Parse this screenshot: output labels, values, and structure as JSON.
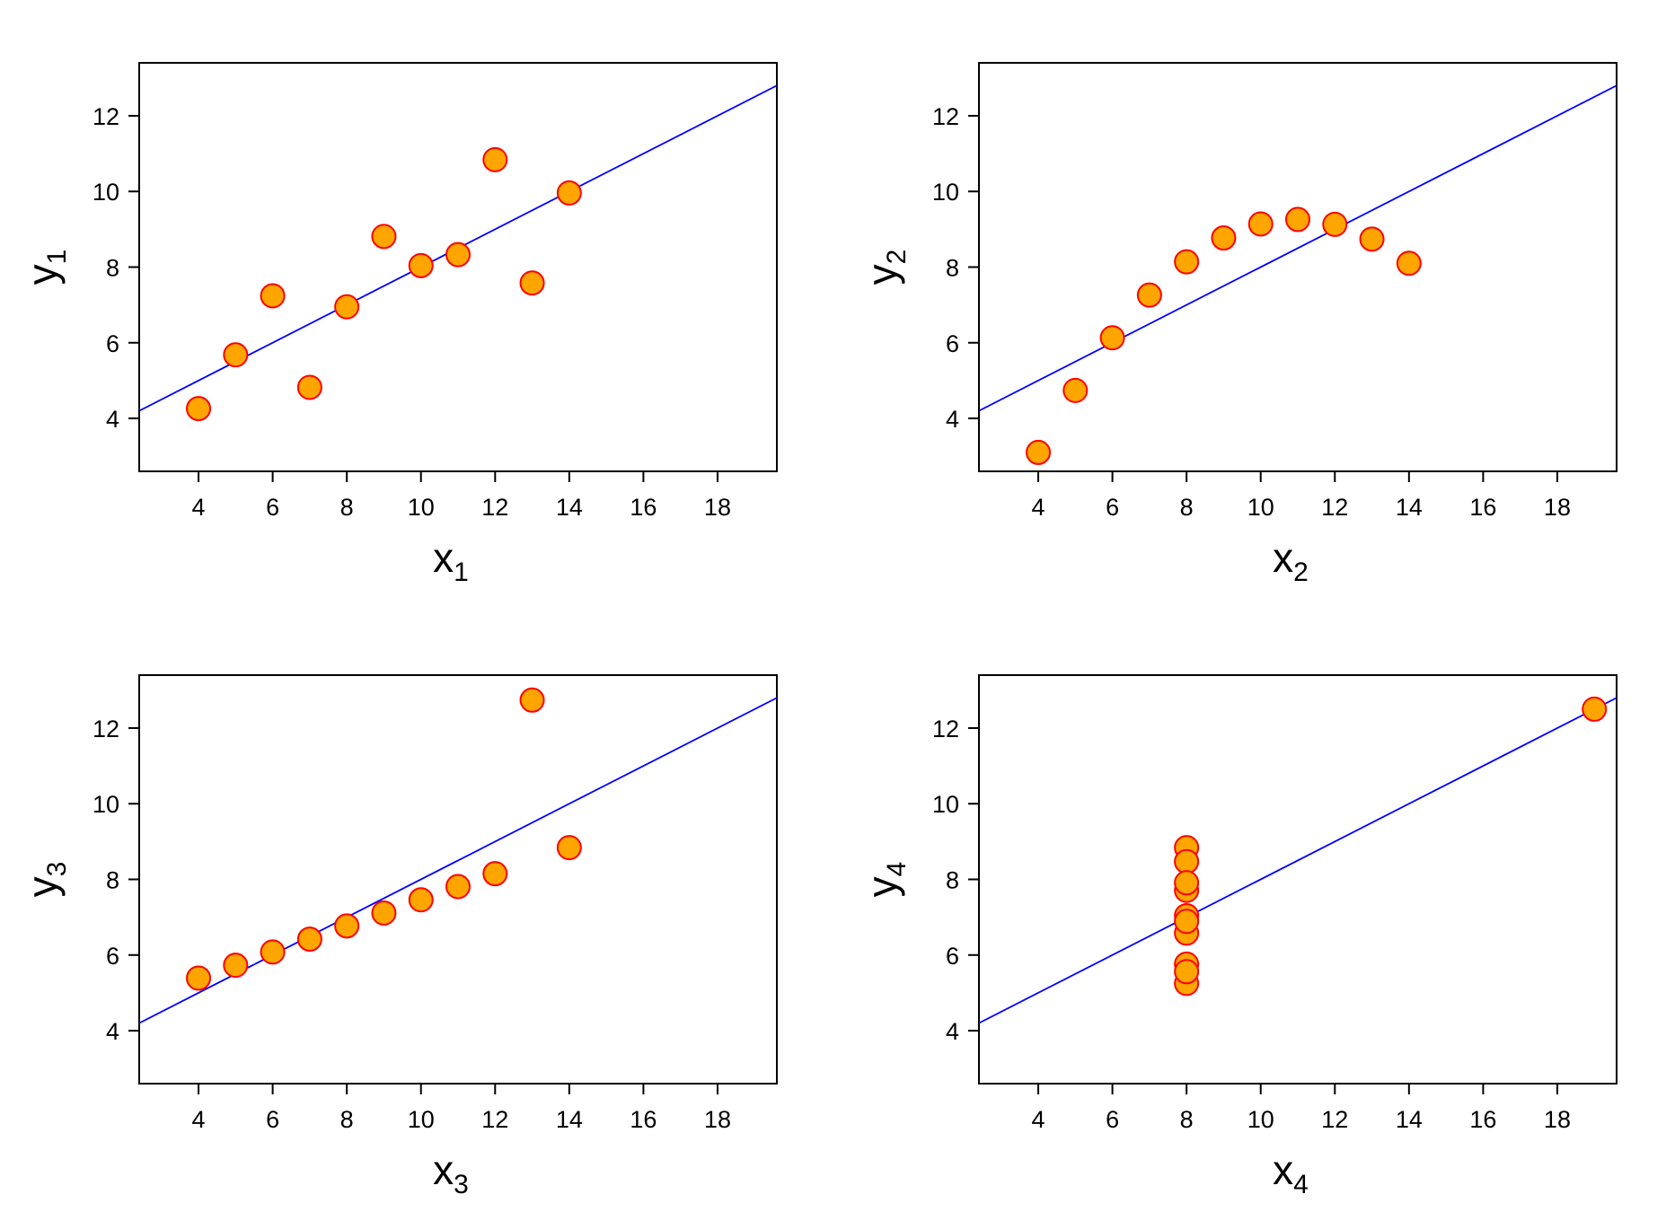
{
  "chart_data": [
    {
      "type": "scatter",
      "xlabel": "x",
      "xlabel_sub": "1",
      "ylabel": "y",
      "ylabel_sub": "1",
      "xlim": [
        2.4,
        19.6
      ],
      "ylim": [
        2.6,
        13.4
      ],
      "xticks": [
        4,
        6,
        8,
        10,
        12,
        14,
        16,
        18
      ],
      "yticks": [
        4,
        6,
        8,
        10,
        12
      ],
      "grid": false,
      "fit_line": {
        "intercept": 3.0,
        "slope": 0.5
      },
      "points": {
        "x": [
          10,
          8,
          13,
          9,
          11,
          14,
          6,
          4,
          12,
          7,
          5
        ],
        "y": [
          8.04,
          6.95,
          7.58,
          8.81,
          8.33,
          9.96,
          7.24,
          4.26,
          10.84,
          4.82,
          5.68
        ]
      }
    },
    {
      "type": "scatter",
      "xlabel": "x",
      "xlabel_sub": "2",
      "ylabel": "y",
      "ylabel_sub": "2",
      "xlim": [
        2.4,
        19.6
      ],
      "ylim": [
        2.6,
        13.4
      ],
      "xticks": [
        4,
        6,
        8,
        10,
        12,
        14,
        16,
        18
      ],
      "yticks": [
        4,
        6,
        8,
        10,
        12
      ],
      "grid": false,
      "fit_line": {
        "intercept": 3.0,
        "slope": 0.5
      },
      "points": {
        "x": [
          10,
          8,
          13,
          9,
          11,
          14,
          6,
          4,
          12,
          7,
          5
        ],
        "y": [
          9.14,
          8.14,
          8.74,
          8.77,
          9.26,
          8.1,
          6.13,
          3.1,
          9.13,
          7.26,
          4.74
        ]
      }
    },
    {
      "type": "scatter",
      "xlabel": "x",
      "xlabel_sub": "3",
      "ylabel": "y",
      "ylabel_sub": "3",
      "xlim": [
        2.4,
        19.6
      ],
      "ylim": [
        2.6,
        13.4
      ],
      "xticks": [
        4,
        6,
        8,
        10,
        12,
        14,
        16,
        18
      ],
      "yticks": [
        4,
        6,
        8,
        10,
        12
      ],
      "grid": false,
      "fit_line": {
        "intercept": 3.0,
        "slope": 0.5
      },
      "points": {
        "x": [
          10,
          8,
          13,
          9,
          11,
          14,
          6,
          4,
          12,
          7,
          5
        ],
        "y": [
          7.46,
          6.77,
          12.74,
          7.11,
          7.81,
          8.84,
          6.08,
          5.39,
          8.15,
          6.42,
          5.73
        ]
      }
    },
    {
      "type": "scatter",
      "xlabel": "x",
      "xlabel_sub": "4",
      "ylabel": "y",
      "ylabel_sub": "4",
      "xlim": [
        2.4,
        19.6
      ],
      "ylim": [
        2.6,
        13.4
      ],
      "xticks": [
        4,
        6,
        8,
        10,
        12,
        14,
        16,
        18
      ],
      "yticks": [
        4,
        6,
        8,
        10,
        12
      ],
      "grid": false,
      "fit_line": {
        "intercept": 3.0,
        "slope": 0.5
      },
      "points": {
        "x": [
          8,
          8,
          8,
          8,
          8,
          8,
          8,
          19,
          8,
          8,
          8
        ],
        "y": [
          6.58,
          5.76,
          7.71,
          8.84,
          8.47,
          7.04,
          5.25,
          12.5,
          5.56,
          7.91,
          6.89
        ]
      }
    }
  ],
  "style": {
    "point_fill": "#FFA500",
    "point_stroke": "#FF0000",
    "line_color": "#0000FF",
    "frame_color": "#000000"
  }
}
